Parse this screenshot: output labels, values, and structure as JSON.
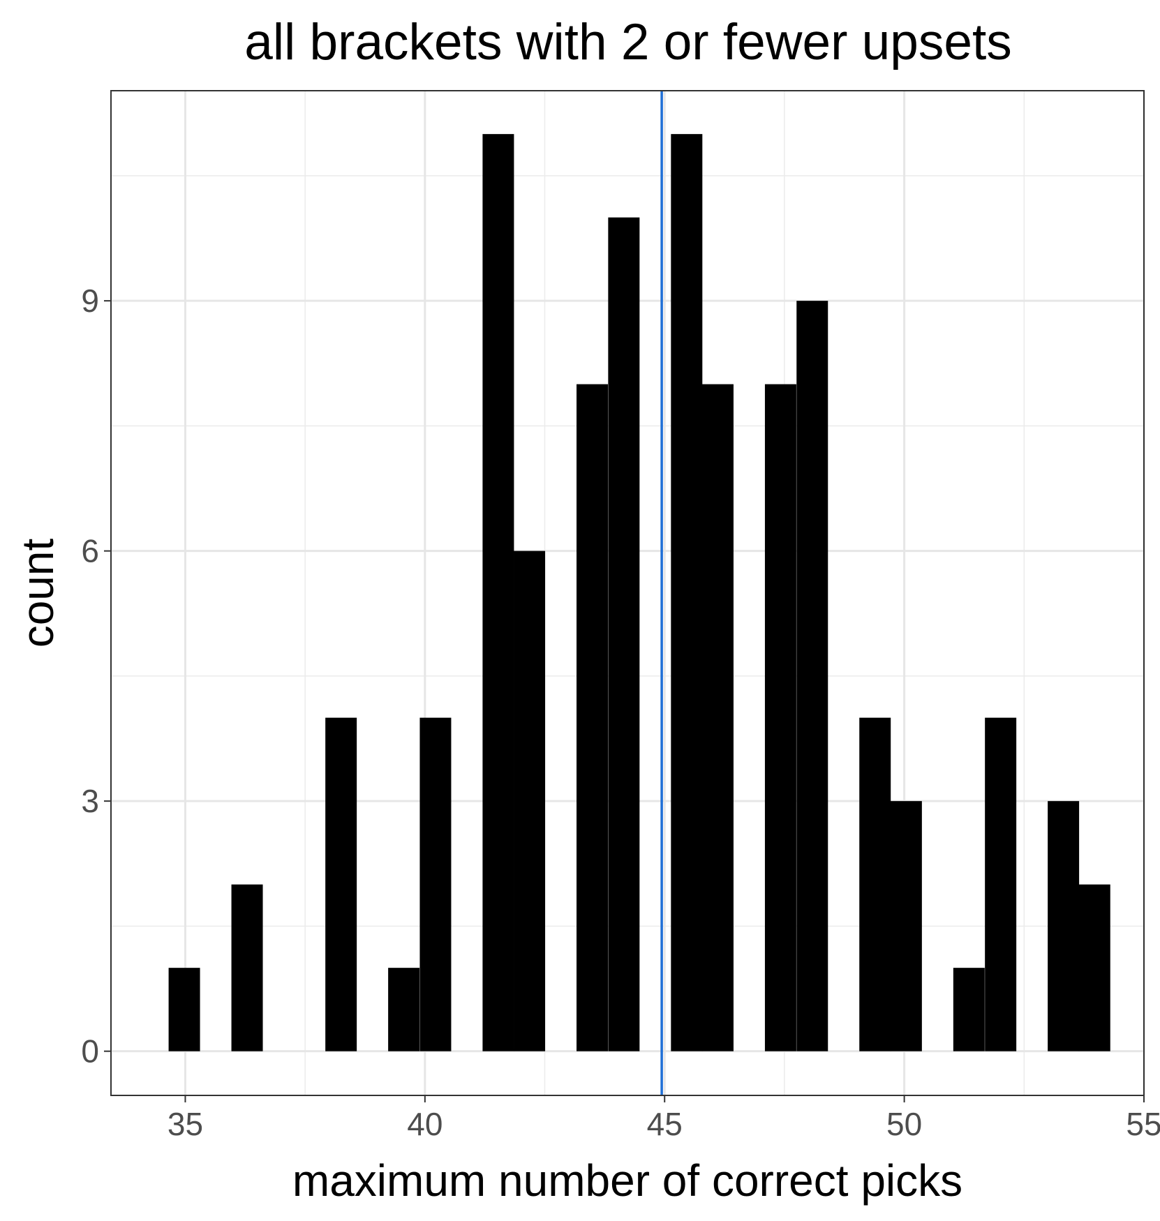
{
  "chart_data": {
    "type": "histogram",
    "title": "all brackets with 2 or fewer upsets",
    "xlabel": "maximum number of correct picks",
    "ylabel": "count",
    "xlim": [
      33.45,
      55.0
    ],
    "ylim": [
      -0.53,
      11.52
    ],
    "x_ticks": [
      35,
      40,
      45,
      50,
      55
    ],
    "x_tick_labels": [
      "35",
      "40",
      "45",
      "50",
      "55"
    ],
    "y_ticks": [
      0,
      3,
      6,
      9
    ],
    "y_tick_labels": [
      "0",
      "3",
      "6",
      "9"
    ],
    "grid": true,
    "bin_width": 0.655,
    "bins": [
      {
        "center": 34.98,
        "count": 1
      },
      {
        "center": 35.63,
        "count": 0
      },
      {
        "center": 36.29,
        "count": 2
      },
      {
        "center": 36.94,
        "count": 0
      },
      {
        "center": 37.6,
        "count": 0
      },
      {
        "center": 38.25,
        "count": 4
      },
      {
        "center": 38.91,
        "count": 0
      },
      {
        "center": 39.56,
        "count": 1
      },
      {
        "center": 40.22,
        "count": 4
      },
      {
        "center": 40.87,
        "count": 0
      },
      {
        "center": 41.53,
        "count": 11
      },
      {
        "center": 42.18,
        "count": 6
      },
      {
        "center": 42.84,
        "count": 0
      },
      {
        "center": 43.49,
        "count": 8
      },
      {
        "center": 44.15,
        "count": 10
      },
      {
        "center": 44.8,
        "count": 0
      },
      {
        "center": 45.46,
        "count": 11
      },
      {
        "center": 46.11,
        "count": 8
      },
      {
        "center": 46.77,
        "count": 0
      },
      {
        "center": 47.42,
        "count": 8
      },
      {
        "center": 48.08,
        "count": 9
      },
      {
        "center": 48.73,
        "count": 0
      },
      {
        "center": 49.39,
        "count": 4
      },
      {
        "center": 50.04,
        "count": 3
      },
      {
        "center": 50.7,
        "count": 0
      },
      {
        "center": 51.35,
        "count": 1
      },
      {
        "center": 52.01,
        "count": 4
      },
      {
        "center": 52.66,
        "count": 0
      },
      {
        "center": 53.32,
        "count": 3
      },
      {
        "center": 53.97,
        "count": 2
      }
    ],
    "reference_line": {
      "x": 44.94,
      "color": "#1f6fd6"
    },
    "bar_color": "#000000"
  }
}
